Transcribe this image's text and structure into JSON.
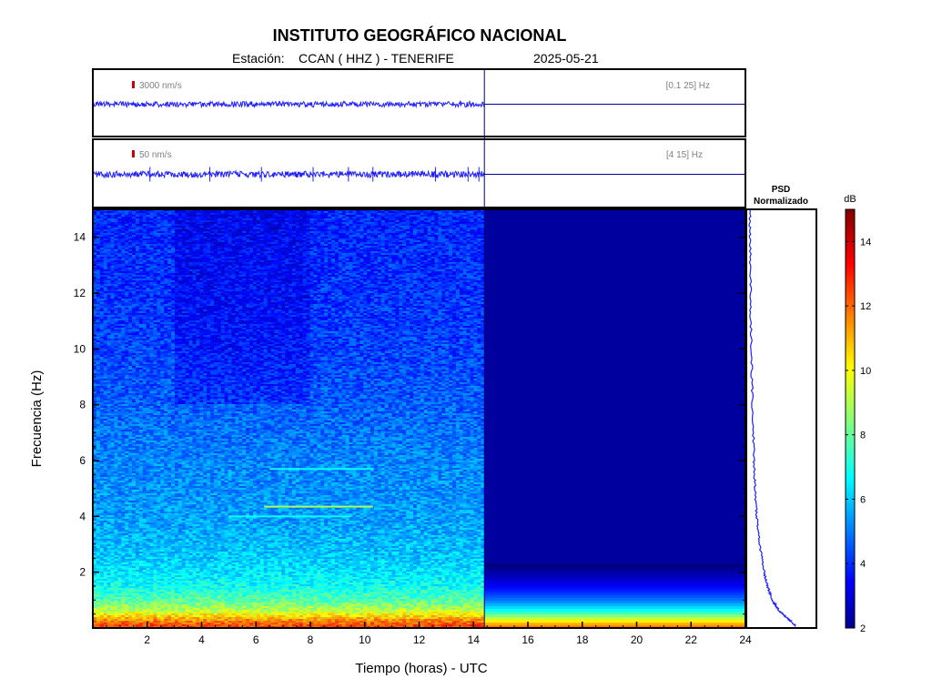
{
  "header": {
    "title": "INSTITUTO GEOGRÁFICO NACIONAL",
    "station_prefix": "Estación:",
    "station": "CCAN ( HHZ ) - TENERIFE",
    "date": "2025-05-21"
  },
  "chart_data": [
    {
      "type": "line",
      "name": "seismogram-broadband",
      "scale_label": "3000 nm/s",
      "band_label": "[0.1 25] Hz",
      "x_range": [
        0,
        24
      ],
      "data_until_hour": 14.4,
      "colors": {
        "trace": "#1f1fff",
        "line": "#0000a0",
        "scale": "#d00000"
      }
    },
    {
      "type": "line",
      "name": "seismogram-filtered",
      "scale_label": "50 nm/s",
      "band_label": "[4 15] Hz",
      "x_range": [
        0,
        24
      ],
      "data_until_hour": 14.4,
      "spikes_hours": [
        2.1,
        4.3,
        6.2,
        8.1,
        9.4,
        10.3,
        12.6,
        13.8,
        14.2
      ],
      "colors": {
        "trace": "#1f1fff",
        "line": "#0000a0",
        "scale": "#d00000"
      }
    },
    {
      "type": "heatmap",
      "name": "spectrogram",
      "xlabel": "Tiempo (horas) - UTC",
      "ylabel": "Frecuencia  (Hz)",
      "xlim": [
        0,
        24
      ],
      "ylim": [
        0,
        15
      ],
      "x_ticks": [
        2,
        4,
        6,
        8,
        10,
        12,
        14,
        16,
        18,
        20,
        22,
        24
      ],
      "y_ticks": [
        2,
        4,
        6,
        8,
        10,
        12,
        14
      ],
      "data_until_hour": 14.4,
      "level_profile_db": [
        {
          "f": 0.1,
          "db": 12.5
        },
        {
          "f": 0.3,
          "db": 11.5
        },
        {
          "f": 0.6,
          "db": 9.5
        },
        {
          "f": 1.0,
          "db": 8.0
        },
        {
          "f": 1.5,
          "db": 7.0
        },
        {
          "f": 2.5,
          "db": 6.2
        },
        {
          "f": 4.0,
          "db": 5.6
        },
        {
          "f": 6.0,
          "db": 5.3
        },
        {
          "f": 8.0,
          "db": 4.8
        },
        {
          "f": 10.0,
          "db": 4.4
        },
        {
          "f": 12.0,
          "db": 4.2
        },
        {
          "f": 15.0,
          "db": 4.0
        }
      ],
      "spectral_lines": [
        {
          "f": 4.35,
          "t_start": 6.3,
          "t_end": 10.3,
          "db": 9.0
        },
        {
          "f": 4.0,
          "t_start": 5.0,
          "t_end": 9.5,
          "db": 7.0
        },
        {
          "f": 5.7,
          "t_start": 6.5,
          "t_end": 10.3,
          "db": 7.0
        }
      ]
    },
    {
      "type": "line",
      "name": "psd-normalized",
      "title_line1": "PSD",
      "title_line2": "Normalizado",
      "ylim": [
        0,
        15
      ],
      "points": [
        {
          "f": 0.05,
          "v": 1.0
        },
        {
          "f": 0.3,
          "v": 0.85
        },
        {
          "f": 0.6,
          "v": 0.65
        },
        {
          "f": 1.0,
          "v": 0.5
        },
        {
          "f": 1.5,
          "v": 0.4
        },
        {
          "f": 2.0,
          "v": 0.33
        },
        {
          "f": 3.0,
          "v": 0.24
        },
        {
          "f": 4.0,
          "v": 0.18
        },
        {
          "f": 5.0,
          "v": 0.14
        },
        {
          "f": 6.0,
          "v": 0.12
        },
        {
          "f": 8.0,
          "v": 0.09
        },
        {
          "f": 10.0,
          "v": 0.065
        },
        {
          "f": 12.0,
          "v": 0.05
        },
        {
          "f": 14.0,
          "v": 0.04
        },
        {
          "f": 15.0,
          "v": 0.035
        }
      ],
      "colors": {
        "line": "#1f1fff"
      }
    },
    {
      "type": "colorbar",
      "name": "db-scale",
      "unit": "dB",
      "range": [
        2,
        15
      ],
      "ticks": [
        2,
        4,
        6,
        8,
        10,
        12,
        14
      ]
    }
  ]
}
